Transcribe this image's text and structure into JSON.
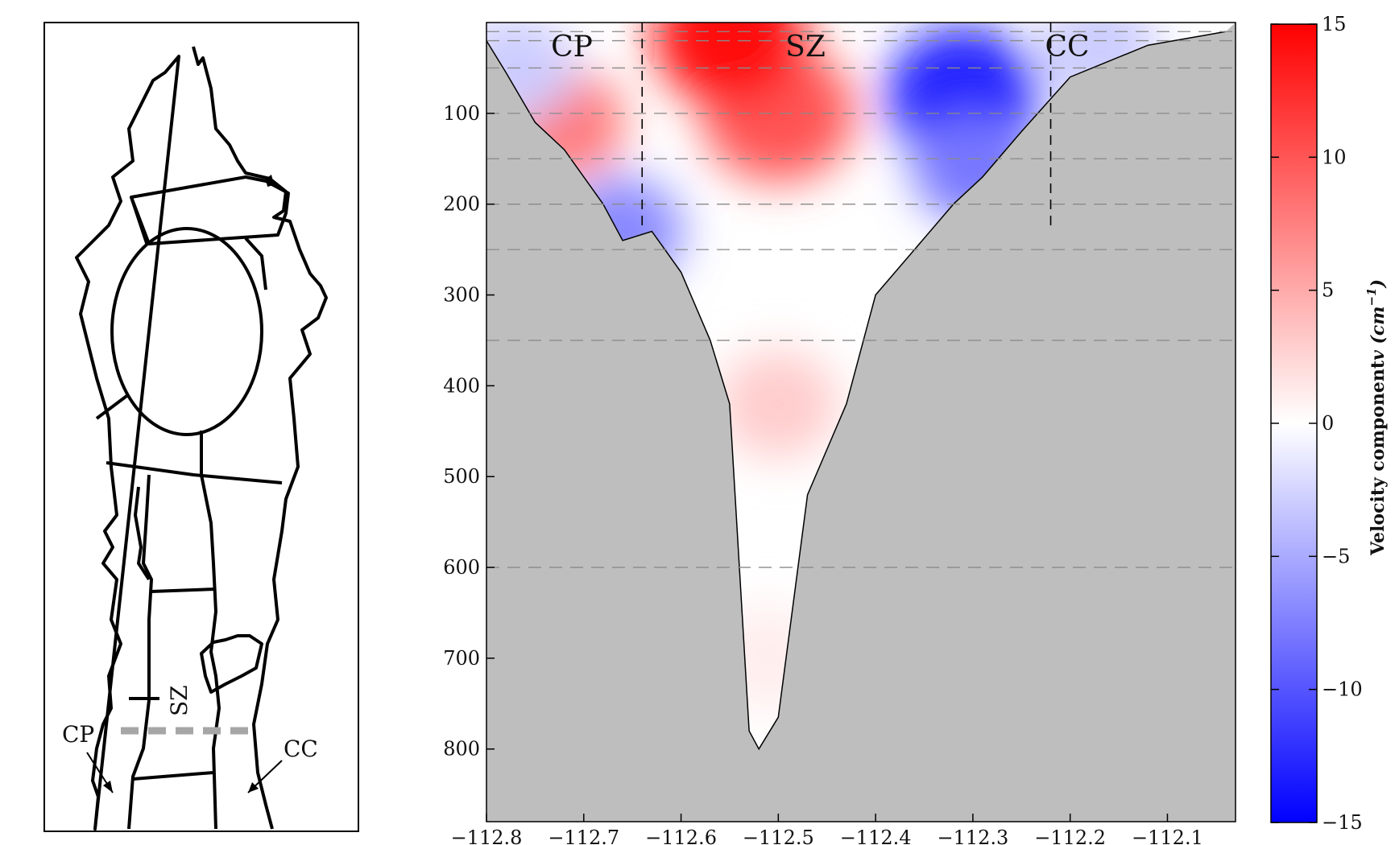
{
  "chart_data": [
    {
      "type": "map",
      "labels": {
        "cp": "CP",
        "cc": "CC",
        "sz": "SZ"
      },
      "transect": "dashed"
    },
    {
      "type": "heatmap",
      "x_ticks": [
        "−112.8",
        "−112.7",
        "−112.6",
        "−112.5",
        "−112.4",
        "−112.3",
        "−112.2",
        "−112.1"
      ],
      "x_tick_values": [
        -112.8,
        -112.7,
        -112.6,
        -112.5,
        -112.4,
        -112.3,
        -112.2,
        -112.1
      ],
      "y_ticks": [
        "100",
        "200",
        "300",
        "400",
        "500",
        "600",
        "700",
        "800"
      ],
      "y_tick_values": [
        100,
        200,
        300,
        400,
        500,
        600,
        700,
        800
      ],
      "xlim": [
        -112.8,
        -112.03
      ],
      "ylim": [
        880,
        0
      ],
      "zones": [
        "CP",
        "SZ",
        "CC"
      ],
      "zone_boundaries": [
        -112.64,
        -112.22
      ],
      "colormap": {
        "min_color": "#0000ff",
        "mid_color": "#ffffff",
        "max_color": "#ff0000"
      },
      "clim": [
        -15,
        15
      ],
      "sample_depths": [
        10,
        20,
        50,
        100,
        150,
        200,
        250,
        350,
        600
      ],
      "bottom_profile": [
        [
          -112.8,
          20
        ],
        [
          -112.78,
          55
        ],
        [
          -112.75,
          110
        ],
        [
          -112.72,
          140
        ],
        [
          -112.68,
          200
        ],
        [
          -112.66,
          240
        ],
        [
          -112.63,
          230
        ],
        [
          -112.6,
          275
        ],
        [
          -112.57,
          350
        ],
        [
          -112.55,
          420
        ],
        [
          -112.53,
          780
        ],
        [
          -112.52,
          800
        ],
        [
          -112.5,
          765
        ],
        [
          -112.47,
          520
        ],
        [
          -112.43,
          420
        ],
        [
          -112.4,
          300
        ],
        [
          -112.36,
          250
        ],
        [
          -112.32,
          200
        ],
        [
          -112.29,
          170
        ],
        [
          -112.25,
          120
        ],
        [
          -112.2,
          60
        ],
        [
          -112.12,
          25
        ],
        [
          -112.04,
          10
        ]
      ],
      "velocity_features": [
        {
          "x": -112.5,
          "depth": 100,
          "value": 10
        },
        {
          "x": -112.55,
          "depth": 15,
          "value": 14
        },
        {
          "x": -112.72,
          "depth": 110,
          "value": 8
        },
        {
          "x": -112.31,
          "depth": 80,
          "value": -13
        },
        {
          "x": -112.3,
          "depth": 160,
          "value": -8
        },
        {
          "x": -112.66,
          "depth": 230,
          "value": -7
        },
        {
          "x": -112.77,
          "depth": 50,
          "value": -3
        },
        {
          "x": -112.17,
          "depth": 30,
          "value": -3
        },
        {
          "x": -112.5,
          "depth": 420,
          "value": 3
        },
        {
          "x": -112.51,
          "depth": 700,
          "value": 1
        }
      ]
    },
    {
      "type": "colorbar",
      "ticks": [
        "15",
        "10",
        "5",
        "0",
        "−5",
        "−10",
        "−15"
      ],
      "tick_values": [
        15,
        10,
        5,
        0,
        -5,
        -10,
        -15
      ],
      "label_main": "Velocity component",
      "label_var": "v",
      "label_unit_base": "(cm",
      "label_unit_exp": "−1",
      "label_unit_close": ")"
    }
  ]
}
